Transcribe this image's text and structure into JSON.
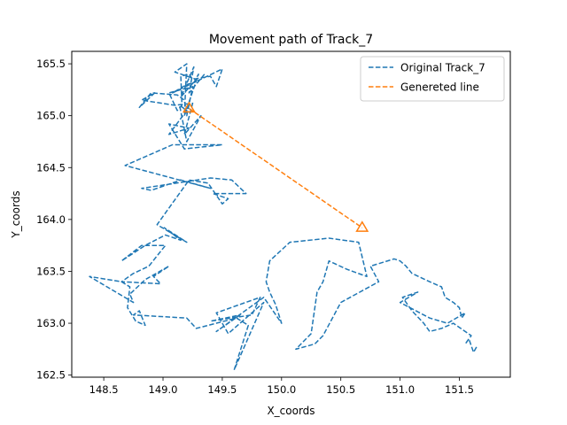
{
  "chart_data": {
    "type": "line",
    "title": "Movement path of Track_7",
    "xlabel": "X_coords",
    "ylabel": "Y_coords",
    "xlim": [
      148.23,
      151.93
    ],
    "ylim": [
      162.48,
      165.62
    ],
    "xticks": [
      148.5,
      149.0,
      149.5,
      150.0,
      150.5,
      151.0,
      151.5
    ],
    "yticks": [
      162.5,
      163.0,
      163.5,
      164.0,
      164.5,
      165.0,
      165.5
    ],
    "xtick_labels": [
      "148.5",
      "149.0",
      "149.5",
      "150.0",
      "150.5",
      "151.0",
      "151.5"
    ],
    "ytick_labels": [
      "162.5",
      "163.0",
      "163.5",
      "164.0",
      "164.5",
      "165.0",
      "165.5"
    ],
    "grid": false,
    "legend_position": "upper right",
    "series": [
      {
        "name": "Original Track_7",
        "color": "#1f77b4",
        "style": "dashed",
        "x": [
          149.35,
          149.22,
          149.26,
          149.15,
          149.28,
          149.1,
          149.2,
          149.18,
          149.3,
          149.26,
          149.2,
          149.08,
          149.5,
          149.45,
          149.4,
          149.25,
          149.22,
          149.15,
          149.16,
          149.12,
          149.05,
          149.25,
          149.2,
          149.18,
          149.12,
          148.9,
          148.8,
          148.93,
          148.82,
          149.1,
          149.25,
          149.18,
          149.32,
          149.2,
          149.14,
          149.2,
          149.05,
          149.22,
          149.05,
          149.18,
          149.5,
          149.08,
          148.68,
          149.4,
          149.15,
          148.9,
          148.82,
          149.4,
          149.58,
          149.7,
          149.42,
          149.55,
          149.5,
          149.38,
          149.22,
          148.95,
          149.2,
          149.01,
          149.15,
          149.02,
          148.85,
          148.65,
          148.82,
          149.02,
          148.88,
          148.75,
          148.65,
          148.98,
          148.92,
          149.05,
          148.85,
          148.72,
          148.75,
          148.38,
          148.65,
          148.72,
          148.7,
          148.77,
          148.85,
          148.8,
          148.75,
          149.2,
          149.28,
          149.62,
          149.72,
          149.6,
          149.85,
          149.55,
          149.45,
          149.82,
          149.75,
          149.4,
          149.65,
          149.45,
          149.85,
          150.0,
          149.95,
          149.9,
          149.87,
          149.9,
          150.07,
          150.4,
          150.65,
          150.72,
          150.55,
          150.4,
          150.35,
          150.3,
          150.25,
          150.12,
          150.28,
          150.35,
          150.5,
          150.82,
          150.75,
          150.95,
          151.0,
          151.05,
          151.1,
          151.25,
          151.35,
          151.38,
          151.45,
          151.5,
          151.52,
          151.55,
          151.4,
          151.25,
          151.0,
          151.15,
          151.02,
          151.1,
          151.2,
          151.25,
          151.35,
          151.45,
          151.6,
          151.55,
          151.58,
          151.62,
          151.65
        ],
        "y": [
          165.4,
          165.22,
          165.47,
          165.18,
          165.35,
          165.42,
          165.5,
          165.0,
          165.4,
          165.32,
          165.3,
          165.22,
          165.45,
          165.28,
          165.38,
          165.35,
          165.4,
          165.38,
          165.1,
          165.05,
          165.22,
          165.28,
          165.0,
          165.15,
          165.2,
          165.22,
          165.08,
          165.22,
          165.15,
          165.1,
          165.12,
          164.82,
          165.0,
          164.75,
          165.1,
          165.05,
          164.82,
          164.88,
          164.92,
          164.68,
          164.72,
          164.72,
          164.52,
          164.3,
          164.38,
          164.28,
          164.3,
          164.4,
          164.38,
          164.25,
          164.25,
          164.2,
          164.15,
          164.35,
          164.38,
          163.95,
          163.78,
          163.92,
          163.8,
          163.85,
          163.75,
          163.6,
          163.75,
          163.75,
          163.55,
          163.48,
          163.4,
          163.38,
          163.45,
          163.55,
          163.42,
          163.28,
          163.2,
          163.45,
          163.4,
          163.35,
          163.15,
          163.02,
          162.98,
          163.12,
          163.08,
          163.05,
          162.95,
          163.05,
          162.98,
          162.55,
          163.2,
          162.9,
          163.1,
          163.25,
          163.08,
          163.02,
          163.08,
          162.92,
          163.25,
          163.0,
          163.18,
          163.3,
          163.4,
          163.6,
          163.78,
          163.82,
          163.78,
          163.45,
          163.52,
          163.6,
          163.4,
          163.3,
          162.9,
          162.75,
          162.8,
          162.88,
          163.2,
          163.4,
          163.55,
          163.62,
          163.6,
          163.55,
          163.48,
          163.4,
          163.35,
          163.25,
          163.2,
          163.15,
          163.05,
          163.1,
          163.0,
          163.05,
          163.2,
          163.3,
          163.25,
          163.12,
          163.0,
          162.92,
          162.95,
          163.0,
          162.88,
          162.8,
          162.85,
          162.72,
          162.78
        ]
      },
      {
        "name": "Genereted line",
        "color": "#ff7f0e",
        "style": "dashed",
        "x": [
          149.22,
          150.68
        ],
        "y": [
          165.07,
          163.92
        ],
        "markers": "open-triangle"
      }
    ]
  }
}
